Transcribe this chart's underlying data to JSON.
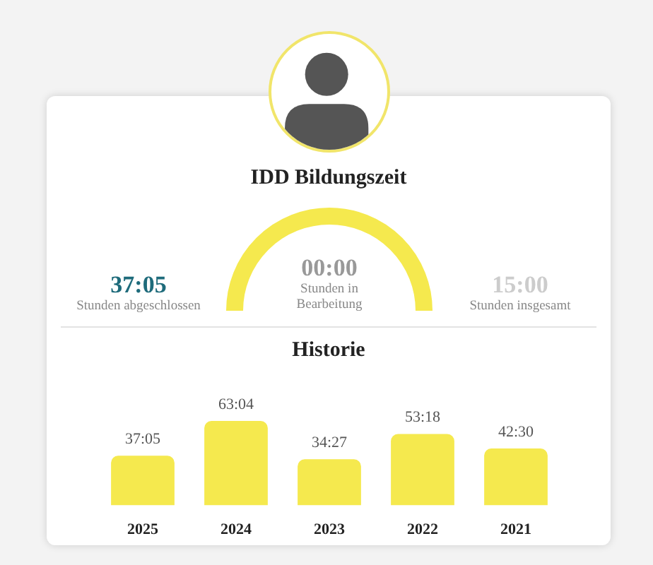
{
  "chart_data": [
    {
      "type": "other",
      "title": "IDD Bildungszeit",
      "annotations": [
        "37:05",
        "Stunden abgeschlossen",
        "00:00",
        "Stunden in Bearbeitung",
        "15:00",
        "Stunden insgesamt"
      ]
    },
    {
      "type": "bar",
      "title": "Historie",
      "categories": [
        "2025",
        "2024",
        "2023",
        "2022",
        "2021"
      ],
      "values": [
        37.0833,
        63.0667,
        34.45,
        53.3,
        42.5
      ],
      "value_labels": [
        "37:05",
        "63:04",
        "34:27",
        "53:18",
        "42:30"
      ],
      "color": "#f5e94e"
    }
  ]
}
